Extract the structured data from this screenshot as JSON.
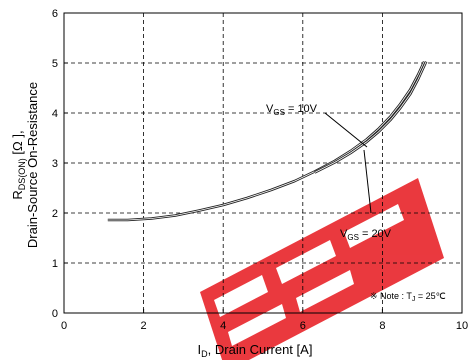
{
  "chart_data": {
    "type": "line",
    "xlabel": "I",
    "xlabel_sub": "D",
    "xlabel_rest": ", Drain Current [A]",
    "ylabel_line1_main": "R",
    "ylabel_line1_sub": "DS(ON)",
    "ylabel_line1_rest": " [Ω ],",
    "ylabel_line2": "Drain-Source On-Resistance",
    "xlim": [
      0,
      10
    ],
    "ylim": [
      0,
      6
    ],
    "x_ticks": [
      "0",
      "2",
      "4",
      "6",
      "8",
      "10"
    ],
    "y_ticks": [
      "0",
      "1",
      "2",
      "3",
      "4",
      "5",
      "6"
    ],
    "grid": true,
    "series": [
      {
        "name": "VGS = 10V",
        "x": [
          1.1,
          1.6,
          2.2,
          2.8,
          3.4,
          4.0,
          4.6,
          5.2,
          5.8,
          6.3,
          6.8,
          7.2,
          7.6,
          7.9,
          8.2,
          8.45,
          8.7,
          8.9,
          9.05
        ],
        "y": [
          1.86,
          1.86,
          1.89,
          1.95,
          2.05,
          2.16,
          2.3,
          2.46,
          2.64,
          2.83,
          3.04,
          3.24,
          3.47,
          3.68,
          3.93,
          4.18,
          4.47,
          4.77,
          5.03
        ]
      },
      {
        "name": "VGS = 20V",
        "x": [
          6.3,
          6.8,
          7.2,
          7.6,
          7.9,
          8.2,
          8.45,
          8.7,
          8.9,
          9.1
        ],
        "y": [
          2.81,
          3.01,
          3.2,
          3.42,
          3.62,
          3.86,
          4.1,
          4.38,
          4.68,
          5.03
        ]
      }
    ],
    "annotations": {
      "vgs10_main": "V",
      "vgs10_sub": "GS",
      "vgs10_rest": " = 10V",
      "vgs20_main": "V",
      "vgs20_sub": "GS",
      "vgs20_rest": " = 20V",
      "note_prefix": "※ Note : T",
      "note_sub": "J",
      "note_rest": " = 25℃"
    },
    "colors": {
      "curve": "#222222",
      "grid": "#000000",
      "watermark": "#e8242a"
    }
  }
}
